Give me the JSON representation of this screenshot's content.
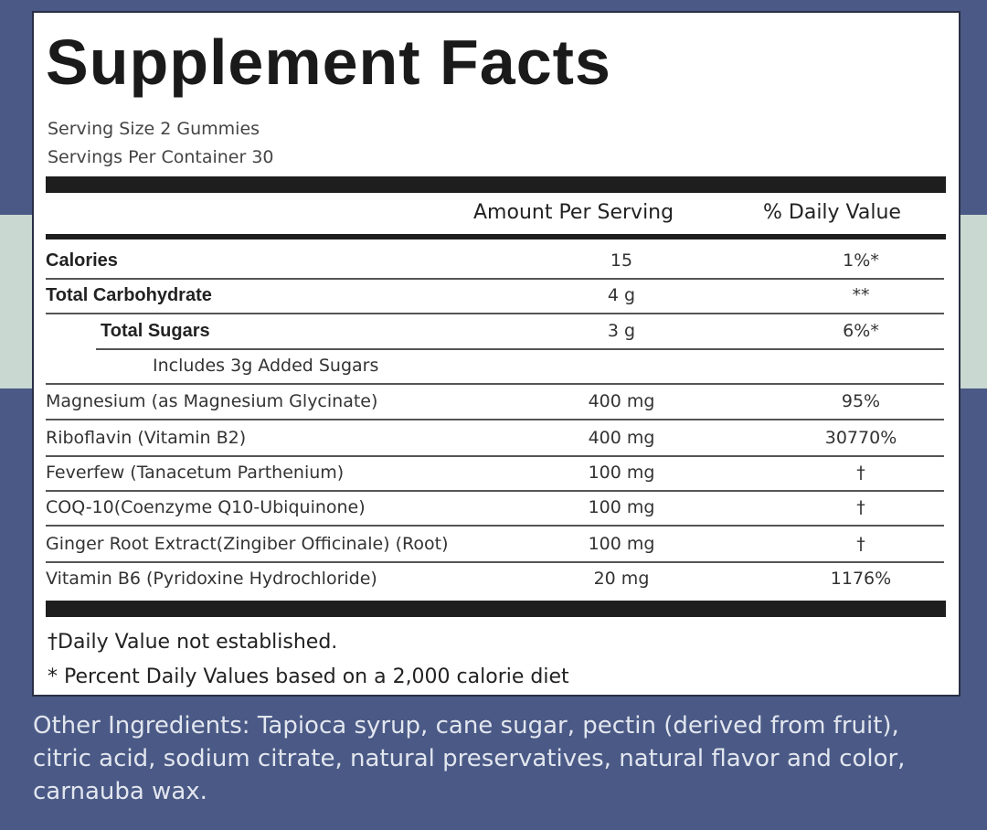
{
  "title": "Supplement Facts",
  "serving_size": "Serving Size 2 Gummies",
  "servings_per_container": "Servings Per Container 30",
  "header": {
    "amount": "Amount Per Serving",
    "daily_value": "% Daily Value"
  },
  "rows": [
    {
      "name": "Calories",
      "amount": "15",
      "daily_value": "1%*"
    },
    {
      "name": "Total Carbohydrate",
      "amount": "4 g",
      "daily_value": "**"
    },
    {
      "name": "Total Sugars",
      "amount": "3 g",
      "daily_value": "6%*"
    },
    {
      "name": "Includes 3g Added Sugars"
    },
    {
      "name": "Magnesium (as Magnesium Glycinate)",
      "amount": "400 mg",
      "daily_value": "95%"
    },
    {
      "name": "Riboflavin (Vitamin B2)",
      "amount": "400 mg",
      "daily_value": "30770%"
    },
    {
      "name": "Feverfew (Tanacetum Parthenium)",
      "amount": "100 mg",
      "daily_value": "†"
    },
    {
      "name": "COQ-10(Coenzyme Q10-Ubiquinone)",
      "amount": "100 mg",
      "daily_value": "†"
    },
    {
      "name": "Ginger Root Extract(Zingiber Officinale) (Root)",
      "amount": "100 mg",
      "daily_value": "†"
    },
    {
      "name": "Vitamin B6 (Pyridoxine Hydrochloride)",
      "amount": "20 mg",
      "daily_value": "1176%"
    }
  ],
  "footnotes": [
    "†Daily Value not established.",
    "* Percent Daily Values based on a 2,000 calorie diet"
  ],
  "other_ingredients": "Other Ingredients: Tapioca syrup, cane sugar, pectin (derived from fruit), citric acid, sodium citrate, natural preservatives, natural flavor and color, carnauba wax."
}
